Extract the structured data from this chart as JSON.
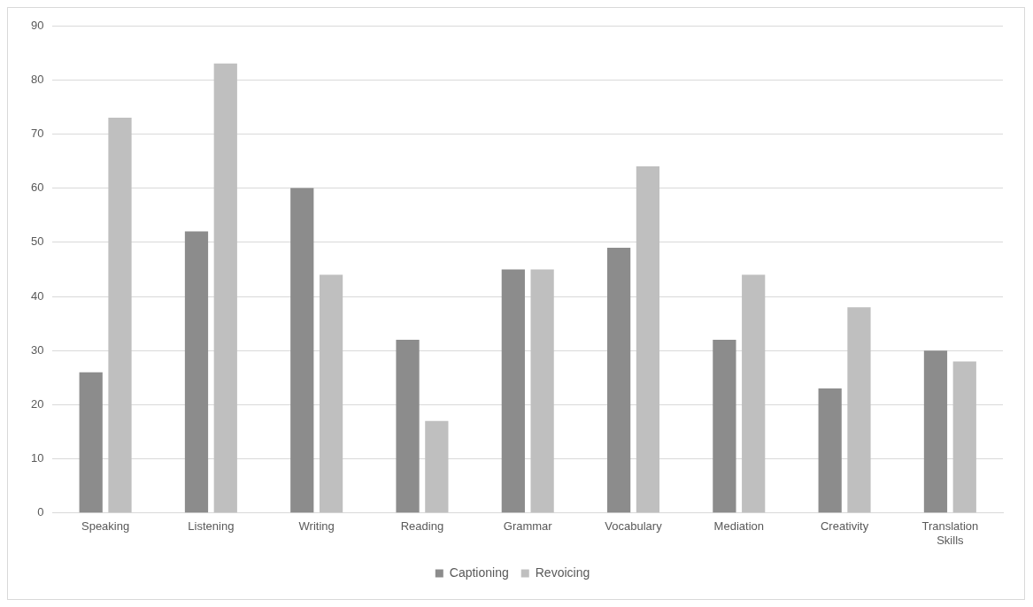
{
  "chart_data": {
    "type": "bar",
    "categories": [
      "Speaking",
      "Listening",
      "Writing",
      "Reading",
      "Grammar",
      "Vocabulary",
      "Mediation",
      "Creativity",
      "Translation Skills"
    ],
    "series": [
      {
        "name": "Captioning",
        "color": "#8c8c8c",
        "values": [
          26,
          52,
          60,
          32,
          45,
          49,
          32,
          23,
          30
        ]
      },
      {
        "name": "Revoicing",
        "color": "#bfbfbf",
        "values": [
          73,
          83,
          44,
          17,
          45,
          64,
          44,
          38,
          28
        ]
      }
    ],
    "ylim": [
      0,
      90
    ],
    "yticks": [
      0,
      10,
      20,
      30,
      40,
      50,
      60,
      70,
      80,
      90
    ],
    "grid": "y",
    "legend": "bottom"
  }
}
